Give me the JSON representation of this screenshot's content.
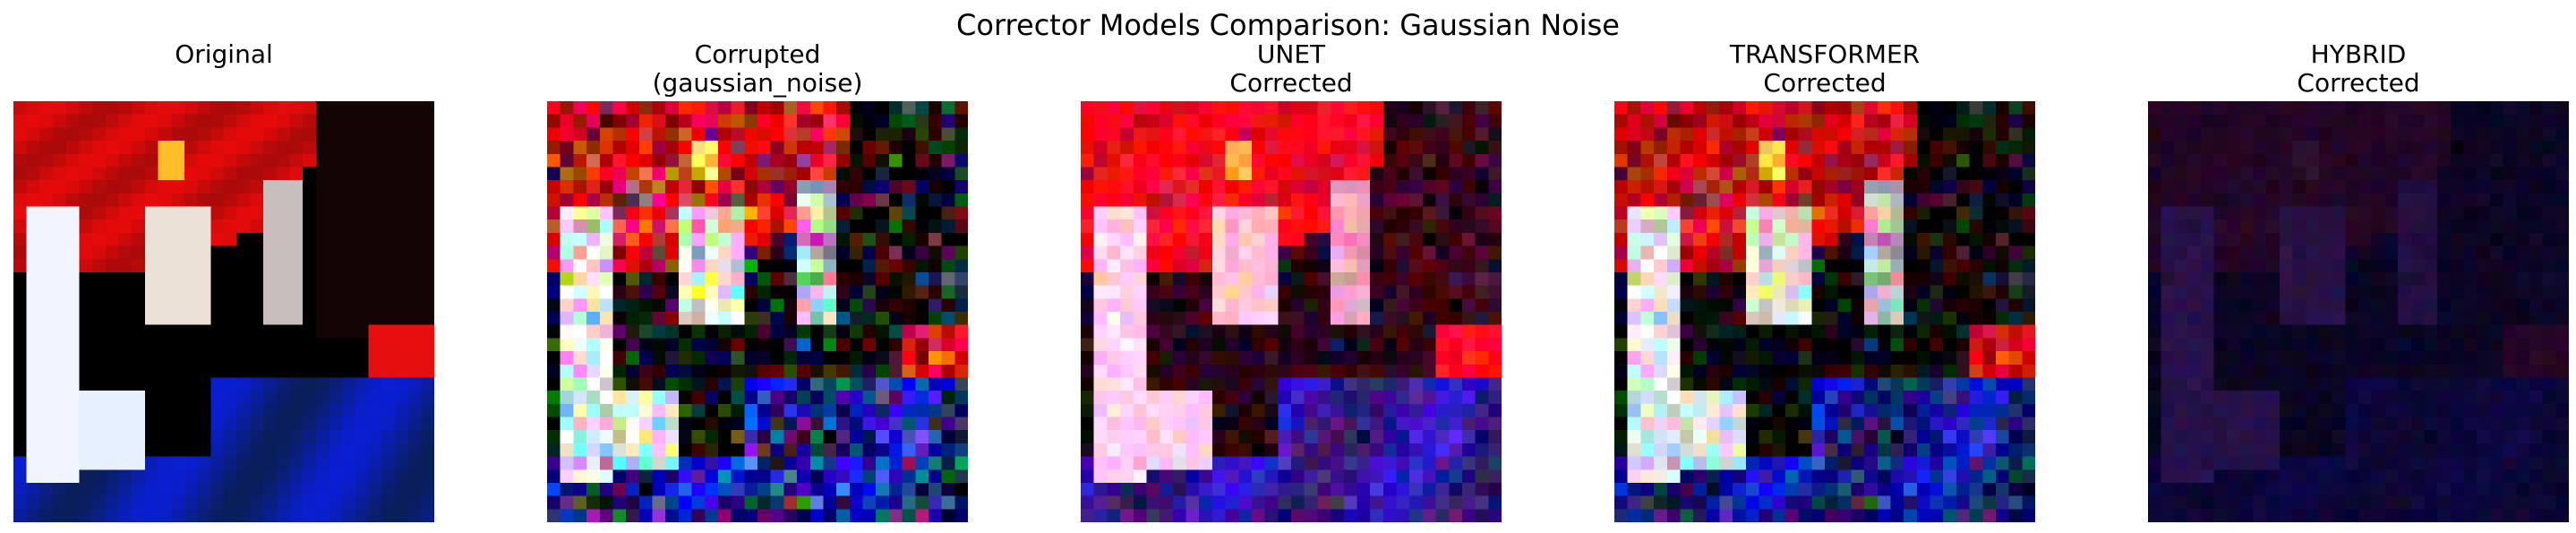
{
  "figure": {
    "title": "Corrector Models Comparison: Gaussian Noise"
  },
  "panels": [
    {
      "id": "original",
      "title_lines": [
        "Original"
      ]
    },
    {
      "id": "corrupted",
      "title_lines": [
        "Corrupted",
        "(gaussian_noise)"
      ]
    },
    {
      "id": "unet",
      "title_lines": [
        "UNET",
        "Corrected"
      ]
    },
    {
      "id": "transformer",
      "title_lines": [
        "TRANSFORMER",
        "Corrected"
      ]
    },
    {
      "id": "hybrid",
      "title_lines": [
        "HYBRID",
        "Corrected"
      ]
    }
  ]
}
